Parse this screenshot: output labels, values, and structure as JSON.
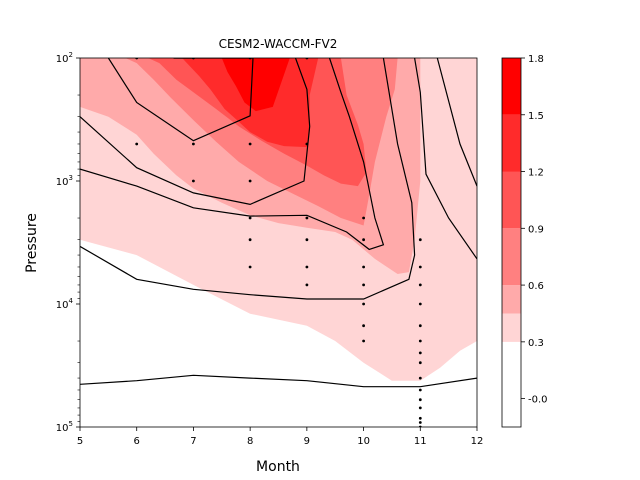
{
  "chart_data": {
    "type": "contour",
    "title": "CESM2-WACCM-FV2",
    "xlabel": "Month",
    "ylabel": "Pressure",
    "x_ticks": [
      "5",
      "6",
      "7",
      "8",
      "9",
      "10",
      "11",
      "12"
    ],
    "xlim": [
      5,
      12
    ],
    "y_scale": "log",
    "y_inverted": true,
    "ylim": [
      100000,
      100
    ],
    "y_ticks": [
      {
        "value": 100,
        "base": "10",
        "exp": "2"
      },
      {
        "value": 1000,
        "base": "10",
        "exp": "3"
      },
      {
        "value": 10000,
        "base": "10",
        "exp": "4"
      },
      {
        "value": 100000,
        "base": "10",
        "exp": "5"
      }
    ],
    "colorbar": {
      "ticks": [
        "-0.0",
        "0.3",
        "0.6",
        "0.9",
        "1.2",
        "1.5",
        "1.8"
      ],
      "levels": [
        -0.15,
        0.3,
        0.45,
        0.6,
        0.9,
        1.2,
        1.5,
        1.8
      ],
      "colors": [
        "#ffffff",
        "#ffd5d5",
        "#ffaaaa",
        "#ff8080",
        "#ff5555",
        "#ff2b2b",
        "#ff0000"
      ]
    },
    "filled_regions": [
      {
        "level": 0.3,
        "color": "#ffd5d5",
        "points": [
          [
            5,
            100
          ],
          [
            12,
            100
          ],
          [
            12,
            20000
          ],
          [
            11.7,
            24000
          ],
          [
            11.35,
            33000
          ],
          [
            11,
            42000
          ],
          [
            10.5,
            42000
          ],
          [
            10,
            30000
          ],
          [
            9.5,
            20000
          ],
          [
            9,
            15000
          ],
          [
            8,
            12000
          ],
          [
            7,
            7000
          ],
          [
            6,
            4000
          ],
          [
            5,
            3000
          ]
        ]
      },
      {
        "level": 0.45,
        "color": "#ffaaaa",
        "points": [
          [
            5,
            100
          ],
          [
            11,
            100
          ],
          [
            11,
            1000
          ],
          [
            10.9,
            3000
          ],
          [
            10.8,
            5500
          ],
          [
            10.6,
            5700
          ],
          [
            10.2,
            4300
          ],
          [
            9.8,
            3000
          ],
          [
            9.5,
            2600
          ],
          [
            9,
            2400
          ],
          [
            8.5,
            2200
          ],
          [
            8,
            1900
          ],
          [
            7.5,
            1500
          ],
          [
            7,
            1150
          ],
          [
            6.7,
            900
          ],
          [
            6.3,
            600
          ],
          [
            6,
            420
          ],
          [
            5.5,
            300
          ],
          [
            5,
            250
          ]
        ]
      },
      {
        "level": 0.6,
        "color": "#ff8080",
        "points": [
          [
            5.8,
            100
          ],
          [
            10.6,
            100
          ],
          [
            10.55,
            180
          ],
          [
            10.4,
            300
          ],
          [
            10.2,
            700
          ],
          [
            10.1,
            1300
          ],
          [
            10,
            2300
          ],
          [
            9.6,
            2000
          ],
          [
            9.2,
            1600
          ],
          [
            8.8,
            1300
          ],
          [
            8.3,
            1000
          ],
          [
            7.8,
            700
          ],
          [
            7.4,
            480
          ],
          [
            7,
            320
          ],
          [
            6.6,
            210
          ],
          [
            6.3,
            150
          ],
          [
            6,
            110
          ]
        ]
      },
      {
        "level": 0.9,
        "color": "#ff5555",
        "points": [
          [
            6.2,
            100
          ],
          [
            9.6,
            100
          ],
          [
            9.7,
            200
          ],
          [
            9.9,
            350
          ],
          [
            10,
            500
          ],
          [
            10.05,
            850
          ],
          [
            9.9,
            1100
          ],
          [
            9.6,
            1050
          ],
          [
            9.3,
            900
          ],
          [
            9,
            750
          ],
          [
            8.6,
            600
          ],
          [
            8.2,
            470
          ],
          [
            7.8,
            360
          ],
          [
            7.4,
            260
          ],
          [
            7,
            190
          ],
          [
            6.7,
            150
          ],
          [
            6.4,
            110
          ]
        ]
      },
      {
        "level": 1.2,
        "color": "#ff2b2b",
        "points": [
          [
            6.8,
            100
          ],
          [
            9.2,
            100
          ],
          [
            9.05,
            200
          ],
          [
            9.05,
            350
          ],
          [
            9.0,
            530
          ],
          [
            8.6,
            520
          ],
          [
            8.3,
            480
          ],
          [
            8.0,
            400
          ],
          [
            7.8,
            330
          ],
          [
            7.55,
            260
          ],
          [
            7.3,
            180
          ],
          [
            7.1,
            140
          ]
        ]
      },
      {
        "level": 1.5,
        "color": "#ff0000",
        "points": [
          [
            7.5,
            100
          ],
          [
            8.7,
            100
          ],
          [
            8.4,
            250
          ],
          [
            8.1,
            270
          ],
          [
            7.9,
            230
          ],
          [
            7.75,
            170
          ],
          [
            7.6,
            130
          ]
        ]
      }
    ],
    "contour_lines": [
      {
        "points": [
          [
            6.65,
            100
          ],
          [
            7,
            100
          ],
          [
            7.8,
            100
          ],
          [
            8.05,
            100
          ]
        ]
      },
      {
        "points": [
          [
            6.65,
            100
          ],
          [
            7,
            100
          ]
        ]
      },
      {
        "points": [
          [
            5.5,
            100
          ],
          [
            6,
            230
          ],
          [
            7,
            470
          ],
          [
            8,
            295
          ],
          [
            8.05,
            100
          ]
        ]
      },
      {
        "points": [
          [
            8.8,
            100
          ],
          [
            9.0,
            180
          ],
          [
            9.05,
            360
          ],
          [
            8.95,
            1000
          ],
          [
            8,
            1550
          ],
          [
            7,
            1250
          ],
          [
            6,
            780
          ],
          [
            5,
            300
          ]
        ]
      },
      {
        "points": [
          [
            9.4,
            100
          ],
          [
            9.6,
            190
          ],
          [
            9.75,
            300
          ],
          [
            10.0,
            700
          ],
          [
            10.2,
            2000
          ],
          [
            10.35,
            3300
          ],
          [
            10.1,
            3600
          ],
          [
            9.7,
            2600
          ],
          [
            9,
            1900
          ],
          [
            8,
            1930
          ],
          [
            7,
            1650
          ],
          [
            6,
            1100
          ],
          [
            5,
            800
          ]
        ]
      },
      {
        "points": [
          [
            5,
            3400
          ],
          [
            6,
            6300
          ],
          [
            7,
            7600
          ],
          [
            8,
            8400
          ],
          [
            9,
            9100
          ],
          [
            10,
            9100
          ],
          [
            10.8,
            6300
          ],
          [
            10.9,
            4000
          ],
          [
            10.85,
            1500
          ],
          [
            10.6,
            500
          ],
          [
            10.35,
            100
          ]
        ]
      },
      {
        "points": [
          [
            10.9,
            100
          ],
          [
            11,
            190
          ],
          [
            11.1,
            880
          ],
          [
            11.5,
            2000
          ],
          [
            12,
            4300
          ]
        ]
      },
      {
        "points": [
          [
            11.3,
            100
          ],
          [
            11.7,
            500
          ],
          [
            12,
            1100
          ]
        ]
      },
      {
        "points": [
          [
            5,
            45000
          ],
          [
            6,
            42000
          ],
          [
            7,
            38000
          ],
          [
            8,
            40000
          ],
          [
            9,
            42000
          ],
          [
            10,
            47000
          ],
          [
            11,
            47000
          ],
          [
            12,
            40000
          ]
        ]
      }
    ],
    "stipple_points": [
      {
        "x": 6,
        "y": [
          100,
          500
        ]
      },
      {
        "x": 7,
        "y": [
          100,
          500,
          1000
        ]
      },
      {
        "x": 8,
        "y": [
          100,
          500,
          1000,
          2000,
          3000,
          5000
        ]
      },
      {
        "x": 9,
        "y": [
          100,
          500,
          2000,
          3000,
          5000,
          7000
        ]
      },
      {
        "x": 10,
        "y": [
          2000,
          3000,
          5000,
          7000,
          10000,
          15000,
          20000
        ]
      },
      {
        "x": 11,
        "y": [
          3000,
          5000,
          7000,
          10000,
          15000,
          20000,
          25000,
          30000,
          40000,
          50000,
          60000,
          70000,
          85000,
          92000,
          100000
        ]
      }
    ]
  }
}
